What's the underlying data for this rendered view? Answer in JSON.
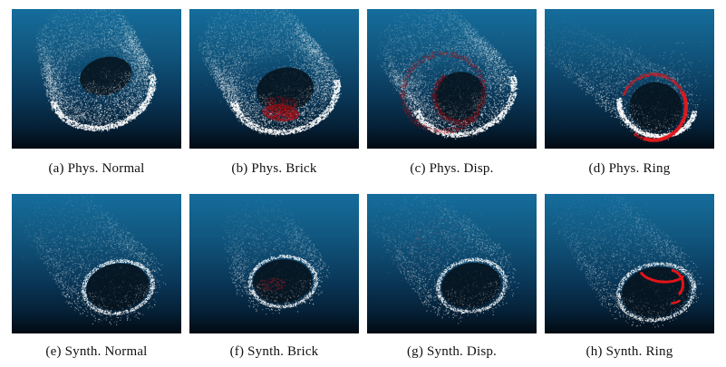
{
  "figure": {
    "type": "point-cloud-comparison-grid",
    "rows": 2,
    "cols": 4,
    "row_themes": [
      "physical-scan",
      "synthetic-scan"
    ]
  },
  "colors": {
    "points": "#ffffff",
    "anomaly_red": "#d8191f",
    "anomaly_dark_red": "#8c1e28",
    "hole_fill": "rgba(6,18,28,0.88)",
    "caption_text": "#111111",
    "page_bg": "#ffffff"
  },
  "background": {
    "stops": [
      [
        0,
        "#156d9c"
      ],
      [
        0.3,
        "#11577f"
      ],
      [
        0.6,
        "#0a3a5c"
      ],
      [
        0.85,
        "#052036"
      ],
      [
        1,
        "#020a12"
      ]
    ]
  },
  "panels": [
    {
      "id": "a",
      "caption": "(a) Phys. Normal",
      "anomaly_label": "none",
      "render": {
        "seed": 11,
        "front": [
          0.53,
          0.56
        ],
        "back": [
          0.42,
          0.2
        ],
        "rf": 0.3,
        "rb": 0.265,
        "aspect": 0.95,
        "rot": -15,
        "rings": 26,
        "dpr": 260,
        "taper": 0.5,
        "fade": 0.55,
        "jitter": 0.1,
        "dot": 2,
        "alpha": 0.85,
        "inner": true,
        "hole": {
          "c": [
            0.555,
            0.48
          ],
          "rx": 0.155,
          "ry": 0.135,
          "rot": -15,
          "wall": 260
        },
        "rim": {
          "kind": "phys",
          "c": [
            0.53,
            0.56
          ],
          "rx": 0.3,
          "ry": 0.285,
          "rot": -15,
          "n": 700,
          "dot": 3,
          "alpha": 0.95,
          "th": 0.06
        },
        "halo": [
          [
            0.5,
            0.45,
            0.3,
            0.3,
            140,
            0.22
          ]
        ],
        "anomalies": []
      }
    },
    {
      "id": "b",
      "caption": "(b) Phys. Brick",
      "anomaly_label": "brick",
      "render": {
        "seed": 22,
        "front": [
          0.56,
          0.58
        ],
        "back": [
          0.36,
          0.22
        ],
        "rf": 0.31,
        "rb": 0.285,
        "aspect": 0.95,
        "rot": -12,
        "rings": 26,
        "dpr": 260,
        "taper": 0.45,
        "fade": 0.5,
        "jitter": 0.1,
        "dot": 2,
        "alpha": 0.85,
        "inner": true,
        "hole": {
          "c": [
            0.565,
            0.58
          ],
          "rx": 0.17,
          "ry": 0.16,
          "rot": -10,
          "wall": 240
        },
        "rim": {
          "kind": "phys",
          "c": [
            0.56,
            0.58
          ],
          "rx": 0.31,
          "ry": 0.295,
          "rot": -12,
          "n": 700,
          "dot": 3,
          "alpha": 0.95,
          "th": 0.06
        },
        "halo": [
          [
            0.45,
            0.4,
            0.32,
            0.3,
            140,
            0.22
          ]
        ],
        "anomalies": [
          {
            "type": "blob",
            "c": [
              0.535,
              0.74
            ],
            "rx": 0.11,
            "ry": 0.06,
            "rot": 5,
            "n": 900,
            "dot": 2,
            "color": "#ad1016",
            "alpha": 0.85
          },
          {
            "type": "blob",
            "c": [
              0.545,
              0.665
            ],
            "rx": 0.1,
            "ry": 0.04,
            "rot": 5,
            "n": 250,
            "dot": 2,
            "color": "#7c0c12",
            "alpha": 0.7
          }
        ]
      }
    },
    {
      "id": "c",
      "caption": "(c) Phys. Disp.",
      "anomaly_label": "displaced-ring",
      "render": {
        "seed": 33,
        "front": [
          0.57,
          0.6
        ],
        "back": [
          0.33,
          0.24
        ],
        "rf": 0.3,
        "rb": 0.26,
        "aspect": 0.95,
        "rot": -20,
        "rings": 26,
        "dpr": 240,
        "taper": 0.5,
        "fade": 0.55,
        "jitter": 0.11,
        "dot": 2,
        "alpha": 0.85,
        "inner": true,
        "hole": {
          "c": [
            0.55,
            0.625
          ],
          "rx": 0.15,
          "ry": 0.175,
          "rot": -15,
          "wall": 220
        },
        "rim": {
          "kind": "phys",
          "c": [
            0.57,
            0.6
          ],
          "rx": 0.3,
          "ry": 0.285,
          "rot": -20,
          "n": 650,
          "dot": 3,
          "alpha": 0.95,
          "th": 0.06
        },
        "halo": [
          [
            0.42,
            0.38,
            0.3,
            0.28,
            130,
            0.22
          ]
        ],
        "anomalies": [
          {
            "type": "arc",
            "c": [
              0.447,
              0.594
            ],
            "rx": 0.24,
            "ry": 0.277,
            "rot": -20,
            "a0": 0,
            "a1": 360,
            "th": 0.07,
            "n": 850,
            "dot": 2,
            "color": "#9c141c",
            "alpha": 0.8
          },
          {
            "type": "arc",
            "c": [
              0.55,
              0.625
            ],
            "rx": 0.155,
            "ry": 0.185,
            "rot": -15,
            "a0": 60,
            "a1": 250,
            "th": 0.1,
            "n": 600,
            "dot": 2,
            "color": "#6e0e15",
            "alpha": 0.85
          }
        ]
      }
    },
    {
      "id": "d",
      "caption": "(d) Phys. Ring",
      "anomaly_label": "ring",
      "render": {
        "seed": 44,
        "front": [
          0.66,
          0.68
        ],
        "back": [
          0.1,
          0.22
        ],
        "rf": 0.225,
        "rb": 0.15,
        "aspect": 1.0,
        "rot": 10,
        "rings": 30,
        "dpr": 110,
        "taper": 0.72,
        "fade": 0.8,
        "jitter": 0.18,
        "dot": 2,
        "alpha": 0.8,
        "inner": false,
        "hole": {
          "c": [
            0.655,
            0.7
          ],
          "rx": 0.155,
          "ry": 0.175,
          "rot": 10,
          "wall": 150
        },
        "rim": {
          "kind": "phys",
          "c": [
            0.66,
            0.68
          ],
          "rx": 0.225,
          "ry": 0.225,
          "rot": 10,
          "n": 650,
          "dot": 3,
          "alpha": 0.95,
          "th": 0.06
        },
        "halo": [
          [
            0.78,
            0.5,
            0.16,
            0.22,
            180,
            0.35
          ],
          [
            0.35,
            0.35,
            0.25,
            0.18,
            120,
            0.18
          ]
        ],
        "anomalies": [
          {
            "type": "arc",
            "c": [
              0.64,
              0.7
            ],
            "rx": 0.19,
            "ry": 0.235,
            "rot": 12,
            "a0": -170,
            "a1": 115,
            "th": 0.05,
            "n": 900,
            "dot": 2,
            "color": "#d8191f",
            "alpha": 0.9
          },
          {
            "type": "arc",
            "c": [
              0.64,
              0.7
            ],
            "rx": 0.19,
            "ry": 0.235,
            "rot": 12,
            "a0": -40,
            "a1": 95,
            "th": 0.04,
            "n": 700,
            "dot": 3,
            "color": "#e01b1f",
            "alpha": 0.95
          }
        ]
      }
    },
    {
      "id": "e",
      "caption": "(e) Synth. Normal",
      "anomaly_label": "none",
      "render": {
        "seed": 55,
        "front": [
          0.61,
          0.655
        ],
        "back": [
          0.27,
          0.14
        ],
        "rf": 0.265,
        "rb": 0.205,
        "aspect": 0.92,
        "rot": -18,
        "rings": 30,
        "dpr": 110,
        "taper": 0.7,
        "fade": 0.75,
        "jitter": 0.16,
        "dot": 2,
        "alpha": 0.75,
        "inner": false,
        "hole": {
          "c": [
            0.625,
            0.665
          ],
          "rx": 0.185,
          "ry": 0.165,
          "rot": -10,
          "wall": 150
        },
        "rim": {
          "kind": "synth",
          "c": [
            0.625,
            0.665
          ],
          "rx": 0.205,
          "ry": 0.185,
          "rot": -10,
          "n": 950,
          "dot": 2,
          "alpha": 0.9,
          "th": 0.06
        },
        "halo": [
          [
            0.38,
            0.3,
            0.26,
            0.22,
            160,
            0.2
          ]
        ],
        "anomalies": []
      }
    },
    {
      "id": "f",
      "caption": "(f) Synth. Brick",
      "anomaly_label": "brick",
      "render": {
        "seed": 66,
        "front": [
          0.54,
          0.6
        ],
        "back": [
          0.4,
          0.22
        ],
        "rf": 0.25,
        "rb": 0.195,
        "aspect": 0.92,
        "rot": -8,
        "rings": 26,
        "dpr": 100,
        "taper": 0.7,
        "fade": 0.75,
        "jitter": 0.16,
        "dot": 2,
        "alpha": 0.75,
        "inner": false,
        "hole": {
          "c": [
            0.55,
            0.625
          ],
          "rx": 0.175,
          "ry": 0.155,
          "rot": -5,
          "wall": 140
        },
        "rim": {
          "kind": "synth",
          "c": [
            0.55,
            0.625
          ],
          "rx": 0.195,
          "ry": 0.18,
          "rot": -5,
          "n": 900,
          "dot": 2,
          "alpha": 0.9,
          "th": 0.06
        },
        "halo": [
          [
            0.45,
            0.32,
            0.22,
            0.2,
            130,
            0.18
          ]
        ],
        "anomalies": [
          {
            "type": "blob",
            "c": [
              0.48,
              0.645
            ],
            "rx": 0.085,
            "ry": 0.048,
            "rot": -5,
            "n": 150,
            "dot": 2,
            "color": "#8c1e28",
            "alpha": 0.7
          }
        ]
      }
    },
    {
      "id": "g",
      "caption": "(g) Synth. Disp.",
      "anomaly_label": "displaced-ring",
      "render": {
        "seed": 77,
        "front": [
          0.6,
          0.635
        ],
        "back": [
          0.22,
          0.12
        ],
        "rf": 0.265,
        "rb": 0.2,
        "aspect": 0.92,
        "rot": -20,
        "rings": 30,
        "dpr": 105,
        "taper": 0.7,
        "fade": 0.75,
        "jitter": 0.16,
        "dot": 2,
        "alpha": 0.75,
        "inner": false,
        "hole": {
          "c": [
            0.615,
            0.655
          ],
          "rx": 0.175,
          "ry": 0.16,
          "rot": -10,
          "wall": 150
        },
        "rim": {
          "kind": "synth",
          "c": [
            0.615,
            0.655
          ],
          "rx": 0.2,
          "ry": 0.185,
          "rot": -10,
          "n": 900,
          "dot": 2,
          "alpha": 0.9,
          "th": 0.06
        },
        "halo": [
          [
            0.36,
            0.28,
            0.26,
            0.22,
            150,
            0.2
          ]
        ],
        "anomalies": [
          {
            "type": "scatter",
            "c": [
              0.36,
              0.38
            ],
            "rx": 0.3,
            "ry": 0.14,
            "rot": -35,
            "n": 120,
            "dot": 2,
            "color": "#a23442",
            "alpha": 0.5
          }
        ]
      }
    },
    {
      "id": "h",
      "caption": "(h) Synth. Ring",
      "anomaly_label": "ring",
      "render": {
        "seed": 88,
        "front": [
          0.63,
          0.67
        ],
        "back": [
          0.24,
          0.1
        ],
        "rf": 0.27,
        "rb": 0.2,
        "aspect": 0.92,
        "rot": -15,
        "rings": 30,
        "dpr": 105,
        "taper": 0.7,
        "fade": 0.75,
        "jitter": 0.16,
        "dot": 2,
        "alpha": 0.75,
        "inner": false,
        "hole": {
          "c": [
            0.655,
            0.7
          ],
          "rx": 0.2,
          "ry": 0.175,
          "rot": -10,
          "wall": 130
        },
        "rim": {
          "kind": "synth",
          "c": [
            0.655,
            0.7
          ],
          "rx": 0.225,
          "ry": 0.2,
          "rot": -10,
          "n": 950,
          "dot": 2,
          "alpha": 0.9,
          "th": 0.06
        },
        "halo": [
          [
            0.38,
            0.26,
            0.24,
            0.2,
            150,
            0.2
          ]
        ],
        "anomalies": [
          {
            "type": "solidarc",
            "c": [
              0.695,
              0.545
            ],
            "rx": 0.135,
            "ry": 0.085,
            "rot": 5,
            "a0": 25,
            "a1": 155,
            "lw": 6,
            "color": "#e21518"
          },
          {
            "type": "solidarc",
            "c": [
              0.74,
              0.645
            ],
            "rx": 0.075,
            "ry": 0.1,
            "rot": -12,
            "a0": -65,
            "a1": 55,
            "lw": 6,
            "color": "#e21518"
          },
          {
            "type": "solidarc",
            "c": [
              0.75,
              0.67
            ],
            "rx": 0.082,
            "ry": 0.112,
            "rot": -12,
            "a0": 72,
            "a1": 100,
            "lw": 5,
            "color": "#e21518"
          }
        ]
      }
    }
  ]
}
